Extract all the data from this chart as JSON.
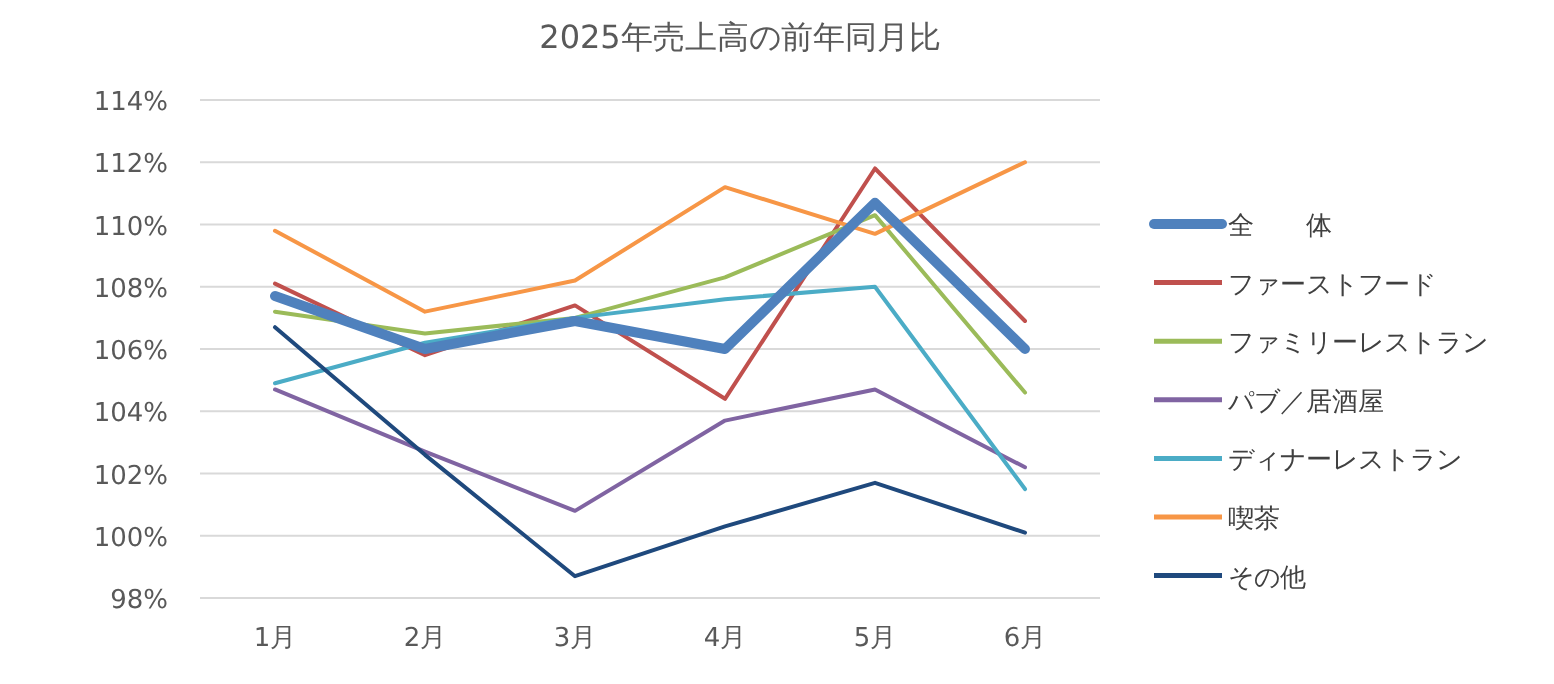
{
  "chart_data": {
    "type": "line",
    "title": "2025年売上高の前年同月比",
    "categories": [
      "1月",
      "2月",
      "3月",
      "4月",
      "5月",
      "6月"
    ],
    "series": [
      {
        "name": "全　　体",
        "color": "#4f81bd",
        "values": [
          107.7,
          106.0,
          106.9,
          106.0,
          110.7,
          106.0
        ]
      },
      {
        "name": "ファーストフード",
        "color": "#c0504d",
        "values": [
          108.1,
          105.8,
          107.4,
          104.4,
          111.8,
          106.9
        ]
      },
      {
        "name": "ファミリーレストラン",
        "color": "#9bbb59",
        "values": [
          107.2,
          106.5,
          107.0,
          108.3,
          110.3,
          104.6
        ]
      },
      {
        "name": "パブ／居酒屋",
        "color": "#8064a2",
        "values": [
          104.7,
          102.7,
          100.8,
          103.7,
          104.7,
          102.2
        ]
      },
      {
        "name": "ディナーレストラン",
        "color": "#4bacc6",
        "values": [
          104.9,
          106.2,
          107.0,
          107.6,
          108.0,
          101.5
        ]
      },
      {
        "name": "喫茶",
        "color": "#f79646",
        "values": [
          109.8,
          107.2,
          108.2,
          111.2,
          109.7,
          112.0
        ]
      },
      {
        "name": "その他",
        "color": "#1f497d",
        "values": [
          106.7,
          102.6,
          98.7,
          100.3,
          101.7,
          100.1
        ]
      }
    ],
    "ylim": [
      98,
      114
    ],
    "yticks": [
      {
        "value": 98,
        "label": "98%"
      },
      {
        "value": 100,
        "label": "100%"
      },
      {
        "value": 102,
        "label": "102%"
      },
      {
        "value": 104,
        "label": "104%"
      },
      {
        "value": 106,
        "label": "106%"
      },
      {
        "value": 108,
        "label": "108%"
      },
      {
        "value": 110,
        "label": "110%"
      },
      {
        "value": 112,
        "label": "112%"
      },
      {
        "value": 114,
        "label": "114%"
      }
    ],
    "grid": "y",
    "legend": "right",
    "marker": "none",
    "line_style": "solid"
  }
}
